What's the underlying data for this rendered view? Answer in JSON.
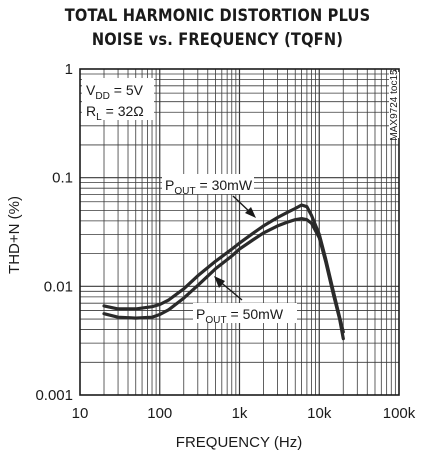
{
  "chart_data": {
    "type": "line",
    "title_line1": "TOTAL HARMONIC DISTORTION PLUS",
    "title_line2": "NOISE vs. FREQUENCY (TQFN)",
    "xlabel": "FREQUENCY (Hz)",
    "ylabel": "THD+N (%)",
    "x_scale": "log",
    "y_scale": "log",
    "xlim": [
      10,
      100000
    ],
    "ylim": [
      0.001,
      1
    ],
    "grid": true,
    "x_ticks": [
      {
        "value": 10,
        "label": "10"
      },
      {
        "value": 100,
        "label": "100"
      },
      {
        "value": 1000,
        "label": "1k"
      },
      {
        "value": 10000,
        "label": "10k"
      },
      {
        "value": 100000,
        "label": "100k"
      }
    ],
    "y_ticks": [
      {
        "value": 1,
        "label": "1"
      },
      {
        "value": 0.1,
        "label": "0.1"
      },
      {
        "value": 0.01,
        "label": "0.01"
      },
      {
        "value": 0.001,
        "label": "0.001"
      }
    ],
    "conditions": {
      "vdd_main": "V",
      "vdd_sub": "DD",
      "vdd_val": " = 5V",
      "rl_main": "R",
      "rl_sub": "L",
      "rl_val": " = 32Ω"
    },
    "figure_id": "MAX9724 toc15",
    "series": [
      {
        "name_main": "P",
        "name_sub": "OUT",
        "name_val": " = 30mW",
        "x": [
          20,
          30,
          50,
          80,
          100,
          130,
          200,
          300,
          500,
          800,
          1000,
          1500,
          2000,
          3000,
          4000,
          5000,
          6000,
          7000,
          8000,
          10000,
          12000,
          15000,
          18000,
          20000
        ],
        "y": [
          0.0066,
          0.0062,
          0.0062,
          0.0065,
          0.0068,
          0.0075,
          0.0095,
          0.0125,
          0.017,
          0.022,
          0.025,
          0.031,
          0.036,
          0.043,
          0.048,
          0.052,
          0.056,
          0.054,
          0.045,
          0.03,
          0.018,
          0.009,
          0.0052,
          0.0038
        ]
      },
      {
        "name_main": "P",
        "name_sub": "OUT",
        "name_val": " = 50mW",
        "x": [
          20,
          30,
          50,
          80,
          100,
          130,
          200,
          300,
          500,
          800,
          1000,
          1500,
          2000,
          3000,
          4000,
          5000,
          6000,
          7000,
          8000,
          10000,
          12000,
          15000,
          18000,
          20000
        ],
        "y": [
          0.0056,
          0.0052,
          0.0051,
          0.0052,
          0.0055,
          0.0061,
          0.0078,
          0.0102,
          0.0145,
          0.019,
          0.022,
          0.027,
          0.031,
          0.036,
          0.039,
          0.041,
          0.042,
          0.041,
          0.038,
          0.028,
          0.017,
          0.0085,
          0.005,
          0.0033
        ]
      }
    ],
    "colors": {
      "curve": "#2a2a2a",
      "grid": "#3a3a3a",
      "frame": "#1a1a1a"
    }
  }
}
